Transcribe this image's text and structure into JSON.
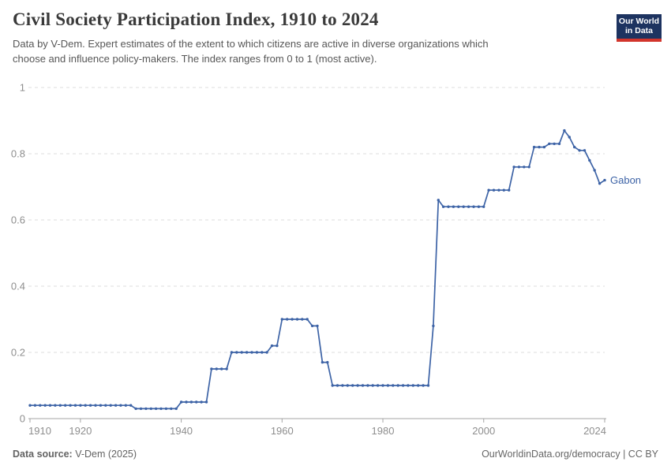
{
  "header": {
    "title": "Civil Society Participation Index, 1910 to 2024",
    "subtitle_lines": [
      "Data by V-Dem. Expert estimates of the extent to which citizens are active in diverse organizations which",
      "choose and influence policy-makers. The index ranges from 0 to 1 (most active)."
    ],
    "logo": {
      "line1": "Our World",
      "line2": "in Data",
      "bg_color": "#1d3360",
      "stripe_color": "#d2352c"
    }
  },
  "footer": {
    "source_label": "Data source:",
    "source_value": " V-Dem (2025)",
    "rights": "OurWorldinData.org/democracy | CC BY"
  },
  "chart_data": {
    "type": "line",
    "title": "Civil Society Participation Index, 1910 to 2024",
    "xlabel": "",
    "ylabel": "",
    "grid": "horizontal-dashed",
    "legend_position": "end-of-line-label",
    "line_color": "#3d63a6",
    "axis_color": "#a5a5a5",
    "gridline_color": "#dedede",
    "x_axis": {
      "min": 1910,
      "max": 2024,
      "ticks": [
        1910,
        1920,
        1940,
        1960,
        1980,
        2000,
        2024
      ]
    },
    "y_axis": {
      "min": 0,
      "max": 1,
      "ticks": [
        0,
        0.2,
        0.4,
        0.6,
        0.8,
        1
      ]
    },
    "series": [
      {
        "name": "Gabon",
        "points": [
          [
            1910,
            0.04
          ],
          [
            1911,
            0.04
          ],
          [
            1912,
            0.04
          ],
          [
            1913,
            0.04
          ],
          [
            1914,
            0.04
          ],
          [
            1915,
            0.04
          ],
          [
            1916,
            0.04
          ],
          [
            1917,
            0.04
          ],
          [
            1918,
            0.04
          ],
          [
            1919,
            0.04
          ],
          [
            1920,
            0.04
          ],
          [
            1921,
            0.04
          ],
          [
            1922,
            0.04
          ],
          [
            1923,
            0.04
          ],
          [
            1924,
            0.04
          ],
          [
            1925,
            0.04
          ],
          [
            1926,
            0.04
          ],
          [
            1927,
            0.04
          ],
          [
            1928,
            0.04
          ],
          [
            1929,
            0.04
          ],
          [
            1930,
            0.04
          ],
          [
            1931,
            0.03
          ],
          [
            1932,
            0.03
          ],
          [
            1933,
            0.03
          ],
          [
            1934,
            0.03
          ],
          [
            1935,
            0.03
          ],
          [
            1936,
            0.03
          ],
          [
            1937,
            0.03
          ],
          [
            1938,
            0.03
          ],
          [
            1939,
            0.03
          ],
          [
            1940,
            0.05
          ],
          [
            1941,
            0.05
          ],
          [
            1942,
            0.05
          ],
          [
            1943,
            0.05
          ],
          [
            1944,
            0.05
          ],
          [
            1945,
            0.05
          ],
          [
            1946,
            0.15
          ],
          [
            1947,
            0.15
          ],
          [
            1948,
            0.15
          ],
          [
            1949,
            0.15
          ],
          [
            1950,
            0.2
          ],
          [
            1951,
            0.2
          ],
          [
            1952,
            0.2
          ],
          [
            1953,
            0.2
          ],
          [
            1954,
            0.2
          ],
          [
            1955,
            0.2
          ],
          [
            1956,
            0.2
          ],
          [
            1957,
            0.2
          ],
          [
            1958,
            0.22
          ],
          [
            1959,
            0.22
          ],
          [
            1960,
            0.3
          ],
          [
            1961,
            0.3
          ],
          [
            1962,
            0.3
          ],
          [
            1963,
            0.3
          ],
          [
            1964,
            0.3
          ],
          [
            1965,
            0.3
          ],
          [
            1966,
            0.28
          ],
          [
            1967,
            0.28
          ],
          [
            1968,
            0.17
          ],
          [
            1969,
            0.17
          ],
          [
            1970,
            0.1
          ],
          [
            1971,
            0.1
          ],
          [
            1972,
            0.1
          ],
          [
            1973,
            0.1
          ],
          [
            1974,
            0.1
          ],
          [
            1975,
            0.1
          ],
          [
            1976,
            0.1
          ],
          [
            1977,
            0.1
          ],
          [
            1978,
            0.1
          ],
          [
            1979,
            0.1
          ],
          [
            1980,
            0.1
          ],
          [
            1981,
            0.1
          ],
          [
            1982,
            0.1
          ],
          [
            1983,
            0.1
          ],
          [
            1984,
            0.1
          ],
          [
            1985,
            0.1
          ],
          [
            1986,
            0.1
          ],
          [
            1987,
            0.1
          ],
          [
            1988,
            0.1
          ],
          [
            1989,
            0.1
          ],
          [
            1990,
            0.28
          ],
          [
            1991,
            0.66
          ],
          [
            1992,
            0.64
          ],
          [
            1993,
            0.64
          ],
          [
            1994,
            0.64
          ],
          [
            1995,
            0.64
          ],
          [
            1996,
            0.64
          ],
          [
            1997,
            0.64
          ],
          [
            1998,
            0.64
          ],
          [
            1999,
            0.64
          ],
          [
            2000,
            0.64
          ],
          [
            2001,
            0.69
          ],
          [
            2002,
            0.69
          ],
          [
            2003,
            0.69
          ],
          [
            2004,
            0.69
          ],
          [
            2005,
            0.69
          ],
          [
            2006,
            0.76
          ],
          [
            2007,
            0.76
          ],
          [
            2008,
            0.76
          ],
          [
            2009,
            0.76
          ],
          [
            2010,
            0.82
          ],
          [
            2011,
            0.82
          ],
          [
            2012,
            0.82
          ],
          [
            2013,
            0.83
          ],
          [
            2014,
            0.83
          ],
          [
            2015,
            0.83
          ],
          [
            2016,
            0.87
          ],
          [
            2017,
            0.85
          ],
          [
            2018,
            0.82
          ],
          [
            2019,
            0.81
          ],
          [
            2020,
            0.81
          ],
          [
            2021,
            0.78
          ],
          [
            2022,
            0.75
          ],
          [
            2023,
            0.71
          ],
          [
            2024,
            0.72
          ]
        ]
      }
    ]
  }
}
